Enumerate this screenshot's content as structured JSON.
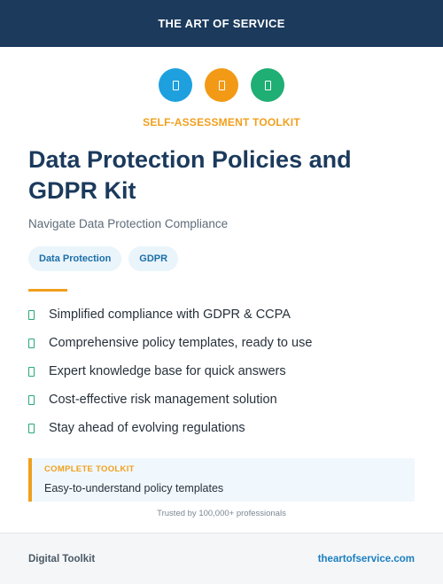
{
  "header": {
    "brand": "THE ART OF SERVICE"
  },
  "icons": [
    {
      "name": "shield-icon",
      "color": "#1ea0df"
    },
    {
      "name": "clipboard-icon",
      "color": "#f29a16"
    },
    {
      "name": "check-icon",
      "color": "#1fae74"
    }
  ],
  "kicker": "SELF-ASSESSMENT TOOLKIT",
  "title": "Data Protection Policies and GDPR Kit",
  "subtitle": "Navigate Data Protection Compliance",
  "tags": [
    "Data Protection",
    "GDPR"
  ],
  "features": [
    "Simplified compliance with GDPR & CCPA",
    "Comprehensive policy templates, ready to use",
    "Expert knowledge base for quick answers",
    "Cost-effective risk management solution",
    "Stay ahead of evolving regulations"
  ],
  "callout": {
    "label": "COMPLETE TOOLKIT",
    "value": "Easy-to-understand policy templates"
  },
  "trusted": "Trusted by 100,000+ professionals",
  "footer": {
    "left": "Digital Toolkit",
    "right": "theartofservice.com"
  }
}
